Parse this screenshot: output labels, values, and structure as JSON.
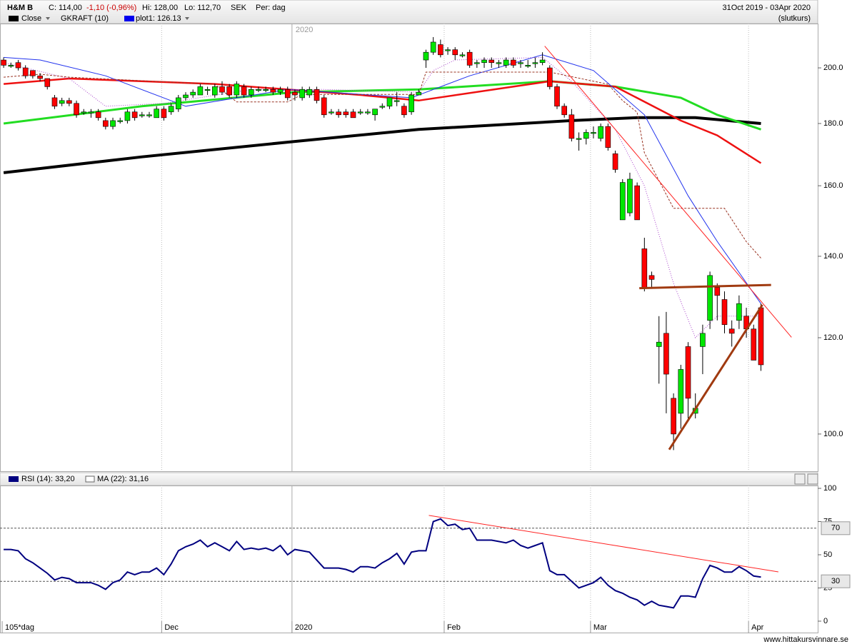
{
  "header": {
    "symbol": "H&M B",
    "close": "C: 114,00",
    "change": "-1,10 (-0,96%)",
    "high": "Hi: 128,00",
    "low": "Lo: 112,70",
    "currency": "SEK",
    "period": "Per: dag",
    "range": "31Oct 2019 - 03Apr 2020",
    "price_type": "(slutkurs)",
    "legend": [
      "Close",
      "GKRAFT (10)",
      "plot1: 126.13"
    ]
  },
  "footer": "www.hittakursvinnare.se",
  "chart_data": [
    {
      "type": "candlestick",
      "log_scale": true,
      "grid": "x",
      "up_color": "#00e600",
      "down_color": "#ff0000",
      "ylim": [
        93.2,
        217.5
      ],
      "yticks": [
        {
          "value": 100,
          "label": "100.0"
        },
        {
          "value": 120,
          "label": "120.0"
        },
        {
          "value": 140,
          "label": "140.0"
        },
        {
          "value": 160,
          "label": "160.0"
        },
        {
          "value": 180,
          "label": "180.0"
        },
        {
          "value": 200,
          "label": "200.0"
        }
      ],
      "xlim": [
        -0.5,
        111.8
      ],
      "xticks": [
        {
          "value": -0.2,
          "label": "105*dag"
        },
        {
          "value": 21.7,
          "label": "Dec"
        },
        {
          "value": 39.6,
          "label": "2020"
        },
        {
          "value": 60.5,
          "label": "Feb"
        },
        {
          "value": 80.6,
          "label": "Mar"
        },
        {
          "value": 102.3,
          "label": "Apr"
        }
      ],
      "open": [
        203,
        201,
        202,
        200,
        199,
        197,
        196,
        189,
        187,
        188,
        187,
        184,
        184,
        184,
        181,
        179,
        181,
        181,
        184,
        183,
        183,
        182,
        185,
        184,
        185,
        189,
        190,
        190,
        192,
        190,
        193,
        193,
        190,
        193,
        190,
        192,
        192,
        192,
        191,
        192,
        191,
        189,
        190,
        192,
        189,
        184,
        184,
        184,
        184,
        184,
        184,
        183,
        186,
        186,
        188,
        186,
        184,
        190,
        203,
        206,
        209,
        207,
        207,
        205,
        206,
        202,
        202,
        203,
        202,
        201,
        203,
        202,
        201,
        202,
        202,
        200,
        193,
        186,
        183,
        175,
        175,
        177,
        175,
        179,
        170,
        150,
        152,
        160,
        142,
        135,
        118,
        121,
        107,
        104,
        118,
        104,
        118,
        124,
        132,
        129,
        122,
        124,
        125,
        122,
        127
      ],
      "high": [
        204,
        202,
        203,
        201,
        199,
        198,
        196,
        190,
        189,
        189,
        188,
        185,
        185,
        185,
        182,
        182,
        182,
        185,
        185,
        184,
        184,
        186,
        186,
        187,
        190,
        191,
        192,
        194,
        193,
        194,
        195,
        194,
        195,
        194,
        193,
        193,
        193,
        193,
        193,
        193,
        192,
        193,
        193,
        193,
        190,
        185,
        185,
        185,
        185,
        185,
        185,
        185,
        187,
        189,
        191,
        187,
        191,
        192,
        207,
        212,
        211,
        208,
        208,
        206,
        207,
        203,
        204,
        204,
        203,
        204,
        204,
        203,
        203,
        204,
        206,
        201,
        194,
        187,
        185,
        177,
        178,
        179,
        180,
        180,
        171,
        162,
        164,
        161,
        145,
        136,
        125,
        126,
        108,
        114,
        119,
        108,
        123,
        136,
        133,
        131,
        124,
        130,
        127,
        123,
        128
      ],
      "low": [
        200,
        200,
        199,
        196,
        196,
        195,
        192,
        185,
        186,
        186,
        182,
        183,
        182,
        181,
        178,
        178,
        180,
        180,
        181,
        182,
        182,
        182,
        181,
        183,
        184,
        188,
        189,
        190,
        190,
        189,
        190,
        189,
        189,
        189,
        189,
        191,
        191,
        190,
        190,
        188,
        188,
        188,
        189,
        187,
        182,
        183,
        182,
        182,
        182,
        183,
        183,
        181,
        185,
        185,
        186,
        182,
        183,
        190,
        200,
        205,
        204,
        205,
        203,
        204,
        200,
        200,
        200,
        200,
        200,
        200,
        200,
        200,
        200,
        200,
        201,
        192,
        185,
        182,
        174,
        171,
        173,
        175,
        174,
        171,
        164,
        150,
        151,
        150,
        131,
        132,
        110,
        104,
        97,
        101,
        103,
        103,
        112,
        122,
        124,
        121,
        118,
        122,
        120,
        115,
        112.7
      ],
      "close": [
        201,
        201,
        200,
        197,
        197,
        196,
        193,
        186,
        188,
        187,
        183,
        184,
        184,
        182,
        179,
        181,
        181,
        184,
        182,
        183,
        183,
        185,
        182,
        186,
        189,
        190,
        191,
        193,
        192,
        193,
        191,
        190,
        194,
        190,
        192,
        192,
        192,
        191,
        192,
        189,
        190,
        192,
        192,
        188,
        183,
        184,
        183,
        183,
        182,
        184,
        184,
        185,
        186,
        189,
        188,
        183,
        190,
        191,
        206,
        210,
        205,
        207,
        205,
        205,
        201,
        202,
        203,
        202,
        202,
        203,
        201,
        202,
        201,
        202,
        203,
        193,
        186,
        183,
        175,
        175,
        177,
        177,
        179,
        172,
        165,
        161,
        162,
        150,
        132,
        134,
        119,
        112,
        100,
        113,
        107,
        105,
        121,
        135,
        130,
        123,
        121,
        128,
        122,
        115,
        114
      ],
      "overlays": [
        {
          "color": "#000000",
          "width": 4,
          "x": [
            0,
            19,
            40,
            57,
            78,
            87,
            95,
            104
          ],
          "values": [
            164,
            169,
            174,
            178,
            181,
            182,
            182,
            180
          ]
        },
        {
          "color": "#22dd22",
          "width": 3,
          "x": [
            0,
            19,
            40,
            57,
            75,
            84,
            93,
            98,
            104
          ],
          "values": [
            180,
            186,
            191,
            192,
            195,
            193,
            189,
            183,
            178
          ]
        },
        {
          "color": "#ee1111",
          "width": 2.5,
          "x": [
            0,
            9,
            29,
            49,
            57,
            75,
            84,
            93,
            98,
            104
          ],
          "values": [
            194,
            196,
            194,
            190,
            188,
            195,
            193,
            181,
            176,
            167
          ]
        },
        {
          "color": "#2233ee",
          "width": 1,
          "x": [
            0,
            5,
            14,
            25,
            39,
            56,
            64,
            74,
            81,
            88,
            94,
            98,
            104
          ],
          "values": [
            204,
            203,
            197,
            186,
            192,
            189,
            197,
            205,
            199,
            183,
            157,
            144,
            128
          ]
        },
        {
          "color": "#aa44cc",
          "width": 1,
          "dash": "1,2",
          "x": [
            0,
            9,
            14,
            22,
            34,
            44,
            57,
            59,
            62,
            74,
            78,
            84,
            88,
            92,
            95,
            98,
            104
          ],
          "values": [
            202,
            196,
            186,
            187,
            192,
            192,
            191,
            199,
            203,
            204,
            195,
            178,
            160,
            133,
            120,
            125,
            125
          ]
        },
        {
          "color": "#993322",
          "width": 1,
          "dash": "3,2",
          "x": [
            0,
            5,
            9,
            29,
            32,
            39,
            41,
            57,
            58,
            75,
            83,
            85,
            87,
            88,
            92,
            99,
            102,
            104
          ],
          "values": [
            196.5,
            197.6,
            196.5,
            193.9,
            187.5,
            187.5,
            190.2,
            190.2,
            198.4,
            198.4,
            193.9,
            188,
            183.9,
            170.3,
            153.3,
            153.3,
            143.9,
            139.5
          ]
        }
      ],
      "trendlines": [
        {
          "color": "#ff2222",
          "width": 1,
          "x": [
            74.3,
            108.2
          ],
          "values": [
            208.4,
            120.1
          ]
        },
        {
          "color": "#a03a10",
          "width": 3,
          "x": [
            87.3,
            105.4
          ],
          "values": [
            131.8,
            132.6
          ]
        },
        {
          "color": "#a03a10",
          "width": 3,
          "x": [
            91.4,
            104.2
          ],
          "values": [
            97.1,
            127.7
          ]
        }
      ]
    },
    {
      "type": "line",
      "title": "RSI (14): 33,20",
      "ma_label": "MA (22): 31,16",
      "color": "#000080",
      "ylim": [
        0,
        100
      ],
      "yticks": [
        0,
        25,
        50,
        75,
        100
      ],
      "levels": [
        70,
        30
      ],
      "values": [
        54,
        54,
        53,
        47,
        44,
        40,
        36,
        31,
        33,
        32,
        29,
        29,
        29,
        27,
        24,
        29,
        31,
        37,
        35,
        37,
        37,
        40,
        35,
        43,
        53,
        56,
        58,
        61,
        56,
        59,
        56,
        53,
        60,
        54,
        55,
        54,
        55,
        53,
        57,
        50,
        54,
        53,
        52,
        46,
        40,
        40,
        40,
        39,
        37,
        41,
        41,
        40,
        44,
        47,
        51,
        43,
        52,
        53,
        53,
        75,
        77,
        72,
        73,
        69,
        70,
        61,
        61,
        61,
        60,
        59,
        61,
        57,
        55,
        57,
        59,
        38,
        35,
        35,
        30,
        25,
        27,
        29,
        33,
        27,
        23,
        21,
        18,
        16,
        12,
        15,
        12,
        11,
        10,
        19,
        19,
        18,
        32,
        42,
        40,
        37,
        37,
        41,
        38,
        34,
        33.2
      ],
      "trendline": {
        "color": "#ff2222",
        "x": [
          58.4,
          106.4
        ],
        "values": [
          79.6,
          37.1
        ]
      }
    }
  ]
}
